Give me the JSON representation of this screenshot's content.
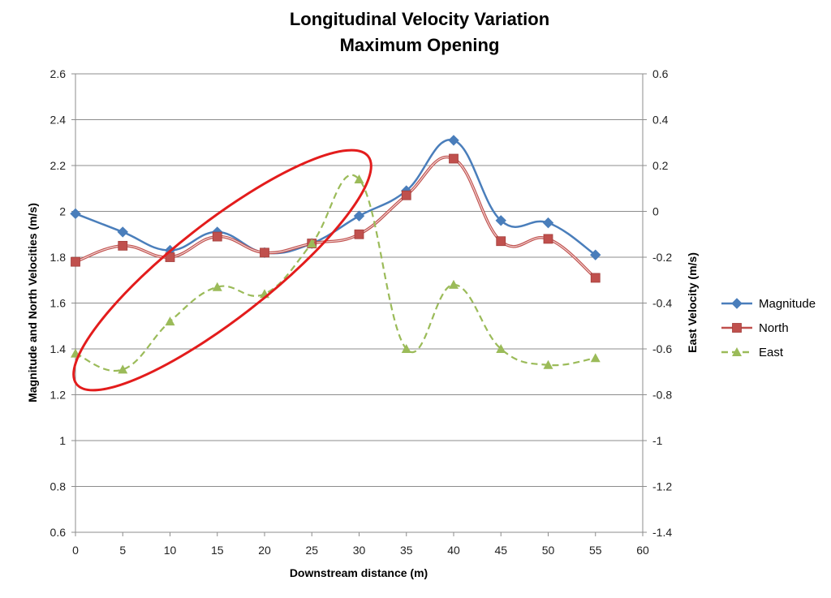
{
  "chart_data": {
    "type": "line",
    "title": [
      "Longitudinal Velocity Variation",
      "Maximum Opening"
    ],
    "xlabel": "Downstream distance (m)",
    "ylabel_left": "Magnitude and North Velocities (m/s)",
    "ylabel_right": "East Velocity (m/s)",
    "xlim": [
      0,
      60
    ],
    "xticks": [
      0,
      5,
      10,
      15,
      20,
      25,
      30,
      35,
      40,
      45,
      50,
      55,
      60
    ],
    "ylim_left": [
      0.6,
      2.6
    ],
    "yticks_left": [
      0.6,
      0.8,
      1,
      1.2,
      1.4,
      1.6,
      1.8,
      2,
      2.2,
      2.4,
      2.6
    ],
    "ylim_right": [
      -1.4,
      0.6
    ],
    "yticks_right": [
      -1.4,
      -1.2,
      -1,
      -0.8,
      -0.6,
      -0.4,
      -0.2,
      0,
      0.2,
      0.4,
      0.6
    ],
    "grid": true,
    "legend_position": "right",
    "x": [
      0,
      5,
      10,
      15,
      20,
      25,
      30,
      35,
      40,
      45,
      50,
      55
    ],
    "series": [
      {
        "name": "Magnitude",
        "axis": "left",
        "color": "#4a7ebb",
        "marker": "diamond",
        "line": "solid",
        "values": [
          1.99,
          1.91,
          1.83,
          1.91,
          1.82,
          1.86,
          1.98,
          2.09,
          2.31,
          1.96,
          1.95,
          1.81
        ]
      },
      {
        "name": "North",
        "axis": "left",
        "color": "#c0504d",
        "marker": "square",
        "line": "solid",
        "values": [
          1.78,
          1.85,
          1.8,
          1.89,
          1.82,
          1.86,
          1.9,
          2.07,
          2.23,
          1.87,
          1.88,
          1.71
        ]
      },
      {
        "name": "East",
        "axis": "right",
        "color": "#9bbb59",
        "marker": "triangle",
        "line": "dashed",
        "values": [
          -0.62,
          -0.69,
          -0.48,
          -0.33,
          -0.36,
          -0.14,
          0.14,
          -0.6,
          -0.32,
          -0.6,
          -0.67,
          -0.64
        ]
      }
    ],
    "annotation": {
      "shape": "ellipse",
      "color": "#e31c1c",
      "description": "highlight"
    }
  }
}
